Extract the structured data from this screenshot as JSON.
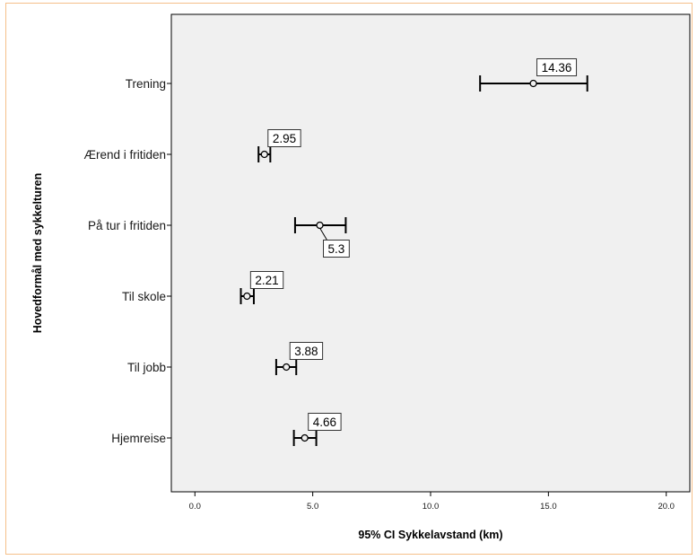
{
  "chart_data": {
    "type": "errorbar",
    "title": "",
    "xlabel": "95% CI Sykkelavstand (km)",
    "ylabel": "Hovedformål med sykkelturen",
    "xlim": [
      -1.0,
      21.0
    ],
    "x_ticks": [
      "0.0",
      "5.0",
      "10.0",
      "15.0",
      "20.0"
    ],
    "x_tick_values": [
      0,
      5,
      10,
      15,
      20
    ],
    "grid": false,
    "colors": {
      "plot_bg": "#f0f0f0",
      "marks": "#000000",
      "frame_border": "#f5c08a"
    },
    "categories": [
      "Trening",
      "Ærend i fritiden",
      "På tur i fritiden",
      "Til skole",
      "Til jobb",
      "Hjemreise"
    ],
    "means": [
      14.36,
      2.95,
      5.3,
      2.21,
      3.88,
      4.66
    ],
    "ci_lower": [
      12.1,
      2.7,
      4.25,
      1.95,
      3.45,
      4.2
    ],
    "ci_upper": [
      16.65,
      3.2,
      6.4,
      2.5,
      4.3,
      5.15
    ],
    "data_labels": [
      "14.36",
      "2.95",
      "5.3",
      "2.21",
      "3.88",
      "4.66"
    ]
  }
}
